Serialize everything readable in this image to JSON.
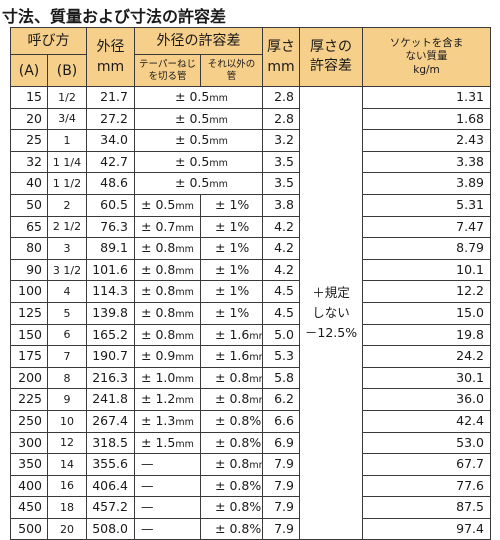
{
  "title": "寸法、質量および寸法の許容差",
  "headers": {
    "nominal": "呼び方",
    "nominal_a": "(A)",
    "nominal_b": "(B)",
    "outer_dia": "外径",
    "outer_dia_unit": "mm",
    "outer_tol": "外径の許容差",
    "outer_tol_taper": "テーパーねじを切る管",
    "outer_tol_other": "それ以外の管",
    "thickness": "厚さ",
    "thickness_unit": "mm",
    "thickness_tol": "厚さの許容差",
    "mass": "ソケットを含まない質量",
    "mass_unit": "kg/m"
  },
  "thickness_tolerance_lines": [
    "＋規定",
    "しない",
    "－12.5%"
  ],
  "rows": [
    {
      "a": "15",
      "b": "1/2",
      "od": "21.7",
      "tol_span": "± 0.5",
      "tol_span_unit": "mm",
      "t": "2.8",
      "mass": "1.31"
    },
    {
      "a": "20",
      "b": "3/4",
      "od": "27.2",
      "tol_span": "± 0.5",
      "tol_span_unit": "mm",
      "t": "2.8",
      "mass": "1.68"
    },
    {
      "a": "25",
      "b": "1",
      "od": "34.0",
      "tol_span": "± 0.5",
      "tol_span_unit": "mm",
      "t": "3.2",
      "mass": "2.43"
    },
    {
      "a": "32",
      "b": "1 1/4",
      "od": "42.7",
      "tol_span": "± 0.5",
      "tol_span_unit": "mm",
      "t": "3.5",
      "mass": "3.38"
    },
    {
      "a": "40",
      "b": "1 1/2",
      "od": "48.6",
      "tol_span": "± 0.5",
      "tol_span_unit": "mm",
      "t": "3.5",
      "mass": "3.89"
    },
    {
      "a": "50",
      "b": "2",
      "od": "60.5",
      "tol_a": "± 0.5",
      "tol_a_unit": "mm",
      "tol_b": "± 1%",
      "tol_b_unit": "",
      "t": "3.8",
      "mass": "5.31"
    },
    {
      "a": "65",
      "b": "2 1/2",
      "od": "76.3",
      "tol_a": "± 0.7",
      "tol_a_unit": "mm",
      "tol_b": "± 1%",
      "tol_b_unit": "",
      "t": "4.2",
      "mass": "7.47"
    },
    {
      "a": "80",
      "b": "3",
      "od": "89.1",
      "tol_a": "± 0.8",
      "tol_a_unit": "mm",
      "tol_b": "± 1%",
      "tol_b_unit": "",
      "t": "4.2",
      "mass": "8.79"
    },
    {
      "a": "90",
      "b": "3 1/2",
      "od": "101.6",
      "tol_a": "± 0.8",
      "tol_a_unit": "mm",
      "tol_b": "± 1%",
      "tol_b_unit": "",
      "t": "4.2",
      "mass": "10.1"
    },
    {
      "a": "100",
      "b": "4",
      "od": "114.3",
      "tol_a": "± 0.8",
      "tol_a_unit": "mm",
      "tol_b": "± 1%",
      "tol_b_unit": "",
      "t": "4.5",
      "mass": "12.2"
    },
    {
      "a": "125",
      "b": "5",
      "od": "139.8",
      "tol_a": "± 0.8",
      "tol_a_unit": "mm",
      "tol_b": "± 1%",
      "tol_b_unit": "",
      "t": "4.5",
      "mass": "15.0"
    },
    {
      "a": "150",
      "b": "6",
      "od": "165.2",
      "tol_a": "± 0.8",
      "tol_a_unit": "mm",
      "tol_b": "± 1.6",
      "tol_b_unit": "mm",
      "t": "5.0",
      "mass": "19.8"
    },
    {
      "a": "175",
      "b": "7",
      "od": "190.7",
      "tol_a": "± 0.9",
      "tol_a_unit": "mm",
      "tol_b": "± 1.6",
      "tol_b_unit": "mm",
      "t": "5.3",
      "mass": "24.2"
    },
    {
      "a": "200",
      "b": "8",
      "od": "216.3",
      "tol_a": "± 1.0",
      "tol_a_unit": "mm",
      "tol_b": "± 0.8",
      "tol_b_unit": "mm",
      "t": "5.8",
      "mass": "30.1"
    },
    {
      "a": "225",
      "b": "9",
      "od": "241.8",
      "tol_a": "± 1.2",
      "tol_a_unit": "mm",
      "tol_b": "± 0.8",
      "tol_b_unit": "mm",
      "t": "6.2",
      "mass": "36.0"
    },
    {
      "a": "250",
      "b": "10",
      "od": "267.4",
      "tol_a": "± 1.3",
      "tol_a_unit": "mm",
      "tol_b": "± 0.8%",
      "tol_b_unit": "",
      "t": "6.6",
      "mass": "42.4"
    },
    {
      "a": "300",
      "b": "12",
      "od": "318.5",
      "tol_a": "± 1.5",
      "tol_a_unit": "mm",
      "tol_b": "± 0.8%",
      "tol_b_unit": "",
      "t": "6.9",
      "mass": "53.0"
    },
    {
      "a": "350",
      "b": "14",
      "od": "355.6",
      "tol_a": "—",
      "tol_a_unit": "",
      "tol_b": "± 0.8",
      "tol_b_unit": "mm",
      "t": "7.9",
      "mass": "67.7"
    },
    {
      "a": "400",
      "b": "16",
      "od": "406.4",
      "tol_a": "—",
      "tol_a_unit": "",
      "tol_b": "± 0.8%",
      "tol_b_unit": "",
      "t": "7.9",
      "mass": "77.6"
    },
    {
      "a": "450",
      "b": "18",
      "od": "457.2",
      "tol_a": "—",
      "tol_a_unit": "",
      "tol_b": "± 0.8%",
      "tol_b_unit": "",
      "t": "7.9",
      "mass": "87.5"
    },
    {
      "a": "500",
      "b": "20",
      "od": "508.0",
      "tol_a": "—",
      "tol_a_unit": "",
      "tol_b": "± 0.8%",
      "tol_b_unit": "",
      "t": "7.9",
      "mass": "97.4"
    }
  ]
}
